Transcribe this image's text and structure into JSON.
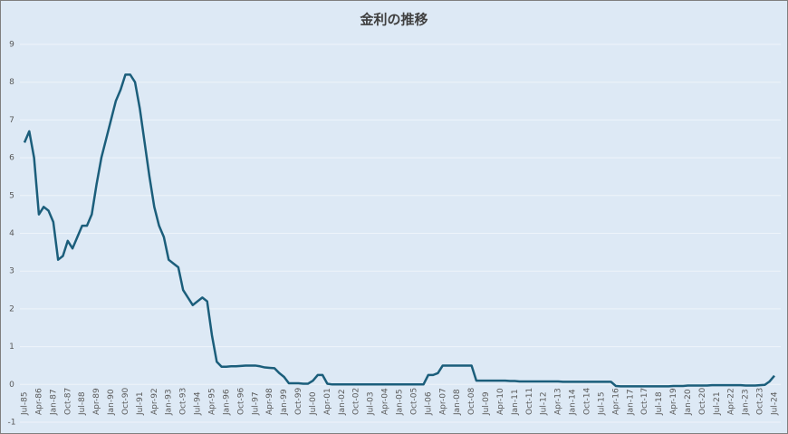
{
  "chart_data": {
    "type": "line",
    "title": "金利の推移",
    "categories": [
      "Jul-85",
      null,
      null,
      "Apr-86",
      null,
      null,
      "Jan-87",
      null,
      null,
      "Oct-87",
      null,
      null,
      "Jul-88",
      null,
      null,
      "Apr-89",
      null,
      null,
      "Jan-90",
      null,
      null,
      "Oct-90",
      null,
      null,
      "Jul-91",
      null,
      null,
      "Apr-92",
      null,
      null,
      "Jan-93",
      null,
      null,
      "Oct-93",
      null,
      null,
      "Jul-94",
      null,
      null,
      "Apr-95",
      null,
      null,
      "Jan-96",
      null,
      null,
      "Oct-96",
      null,
      null,
      "Jul-97",
      null,
      null,
      "Apr-98",
      null,
      null,
      "Jan-99",
      null,
      null,
      "Oct-99",
      null,
      null,
      "Jul-00",
      null,
      null,
      "Apr-01",
      null,
      null,
      "Jan-02",
      null,
      null,
      "Oct-02",
      null,
      null,
      "Jul-03",
      null,
      null,
      "Apr-04",
      null,
      null,
      "Jan-05",
      null,
      null,
      "Oct-05",
      null,
      null,
      "Jul-06",
      null,
      null,
      "Apr-07",
      null,
      null,
      "Jan-08",
      null,
      null,
      "Oct-08",
      null,
      null,
      "Jul-09",
      null,
      null,
      "Apr-10",
      null,
      null,
      "Jan-11",
      null,
      null,
      "Oct-11",
      null,
      null,
      "Jul-12",
      null,
      null,
      "Apr-13",
      null,
      null,
      "Jan-14",
      null,
      null,
      "Oct-14",
      null,
      null,
      "Jul-15",
      null,
      null,
      "Apr-16",
      null,
      null,
      "Jan-17",
      null,
      null,
      "Oct-17",
      null,
      null,
      "Jul-18",
      null,
      null,
      "Apr-19",
      null,
      null,
      "Jan-20",
      null,
      null,
      "Oct-20",
      null,
      null,
      "Jul-21",
      null,
      null,
      "Apr-22",
      null,
      null,
      "Jan-23",
      null,
      null,
      "Oct-23",
      null,
      null,
      "Jul-24"
    ],
    "values": [
      6.4,
      6.7,
      6.0,
      4.5,
      4.7,
      4.6,
      4.3,
      3.3,
      3.4,
      3.8,
      3.6,
      3.9,
      4.2,
      4.2,
      4.5,
      5.3,
      6.0,
      6.5,
      7.0,
      7.5,
      7.8,
      8.2,
      8.2,
      8.0,
      7.3,
      6.4,
      5.5,
      4.7,
      4.2,
      3.9,
      3.3,
      3.2,
      3.1,
      2.5,
      2.3,
      2.1,
      2.2,
      2.3,
      2.2,
      1.3,
      0.6,
      0.47,
      0.47,
      0.48,
      0.48,
      0.49,
      0.5,
      0.5,
      0.5,
      0.48,
      0.45,
      0.44,
      0.43,
      0.3,
      0.2,
      0.03,
      0.03,
      0.03,
      0.02,
      0.02,
      0.1,
      0.25,
      0.25,
      0.02,
      0,
      0,
      0,
      0,
      0,
      0,
      0,
      0,
      0,
      0,
      0,
      0,
      0,
      0,
      0,
      0,
      0,
      0,
      0,
      0,
      0.25,
      0.25,
      0.3,
      0.5,
      0.5,
      0.5,
      0.5,
      0.5,
      0.5,
      0.5,
      0.1,
      0.1,
      0.1,
      0.1,
      0.1,
      0.1,
      0.1,
      0.09,
      0.09,
      0.08,
      0.08,
      0.08,
      0.08,
      0.08,
      0.08,
      0.08,
      0.08,
      0.08,
      0.07,
      0.07,
      0.07,
      0.07,
      0.07,
      0.07,
      0.07,
      0.07,
      0.07,
      0.07,
      0.07,
      -0.04,
      -0.05,
      -0.05,
      -0.05,
      -0.05,
      -0.05,
      -0.05,
      -0.05,
      -0.05,
      -0.05,
      -0.05,
      -0.05,
      -0.04,
      -0.04,
      -0.04,
      -0.03,
      -0.03,
      -0.03,
      -0.03,
      -0.03,
      -0.02,
      -0.02,
      -0.02,
      -0.02,
      -0.02,
      -0.02,
      -0.02,
      -0.03,
      -0.03,
      -0.03,
      -0.02,
      -0.01,
      0.08,
      0.23
    ],
    "color": "#1b5e7b",
    "ylim": [
      -1,
      9
    ],
    "yticks": [
      -1,
      0,
      1,
      2,
      3,
      4,
      5,
      6,
      7,
      8,
      9
    ],
    "grid": true
  }
}
